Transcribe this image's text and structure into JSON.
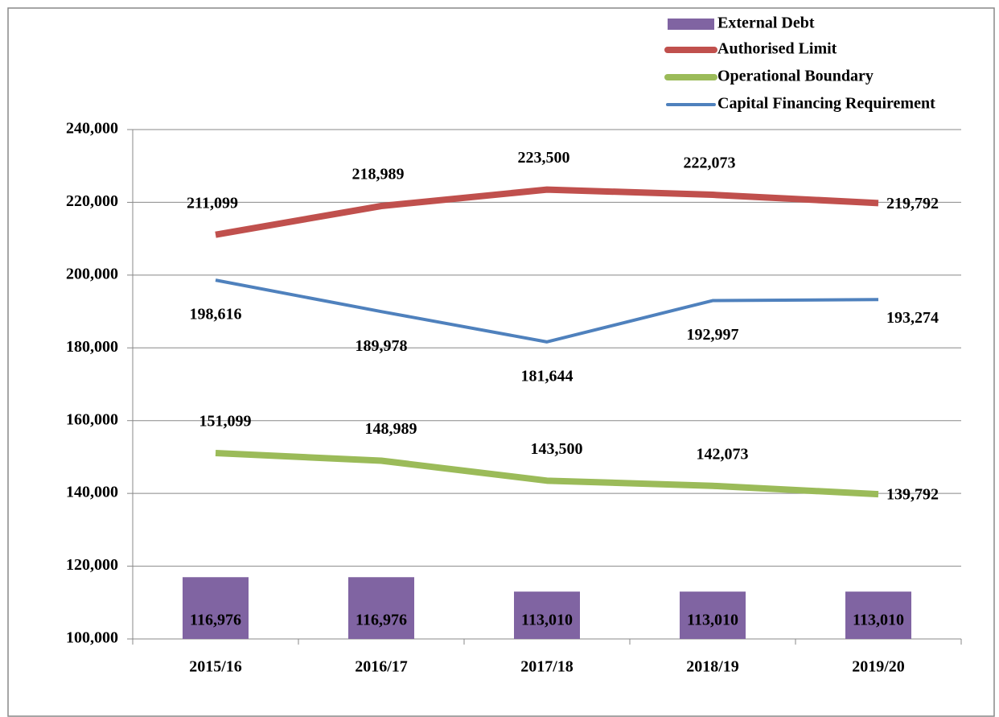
{
  "chart_data": {
    "type": "combo",
    "categories": [
      "2015/16",
      "2016/17",
      "2017/18",
      "2018/19",
      "2019/20"
    ],
    "series": [
      {
        "name": "External Debt",
        "type": "bar",
        "color": "#8064a2",
        "values": [
          116976,
          116976,
          113010,
          113010,
          113010
        ],
        "value_labels": [
          "116,976",
          "116,976",
          "113,010",
          "113,010",
          "113,010"
        ]
      },
      {
        "name": "Authorised Limit",
        "type": "line",
        "color": "#c0504d",
        "line_width": 8,
        "values": [
          211099,
          218989,
          223500,
          222073,
          219792
        ],
        "value_labels": [
          "211,099",
          "218,989",
          "223,500",
          "222,073",
          "219,792"
        ]
      },
      {
        "name": "Operational Boundary",
        "type": "line",
        "color": "#9bbb59",
        "line_width": 8,
        "values": [
          151099,
          148989,
          143500,
          142073,
          139792
        ],
        "value_labels": [
          "151,099",
          "148,989",
          "143,500",
          "142,073",
          "139,792"
        ]
      },
      {
        "name": "Capital Financing Requirement",
        "type": "line",
        "color": "#4f81bd",
        "line_width": 4,
        "values": [
          198616,
          189978,
          181644,
          192997,
          193274
        ],
        "value_labels": [
          "198,616",
          "189,978",
          "181,644",
          "192,997",
          "193,274"
        ]
      }
    ],
    "ylim": [
      100000,
      240000
    ],
    "yticks": [
      {
        "value": 100000,
        "label": "100,000"
      },
      {
        "value": 120000,
        "label": "120,000"
      },
      {
        "value": 140000,
        "label": "140,000"
      },
      {
        "value": 160000,
        "label": "160,000"
      },
      {
        "value": 180000,
        "label": "180,000"
      },
      {
        "value": 200000,
        "label": "200,000"
      },
      {
        "value": 220000,
        "label": "220,000"
      },
      {
        "value": 240000,
        "label": "240,000"
      }
    ],
    "grid": true,
    "legend": "top-right"
  }
}
